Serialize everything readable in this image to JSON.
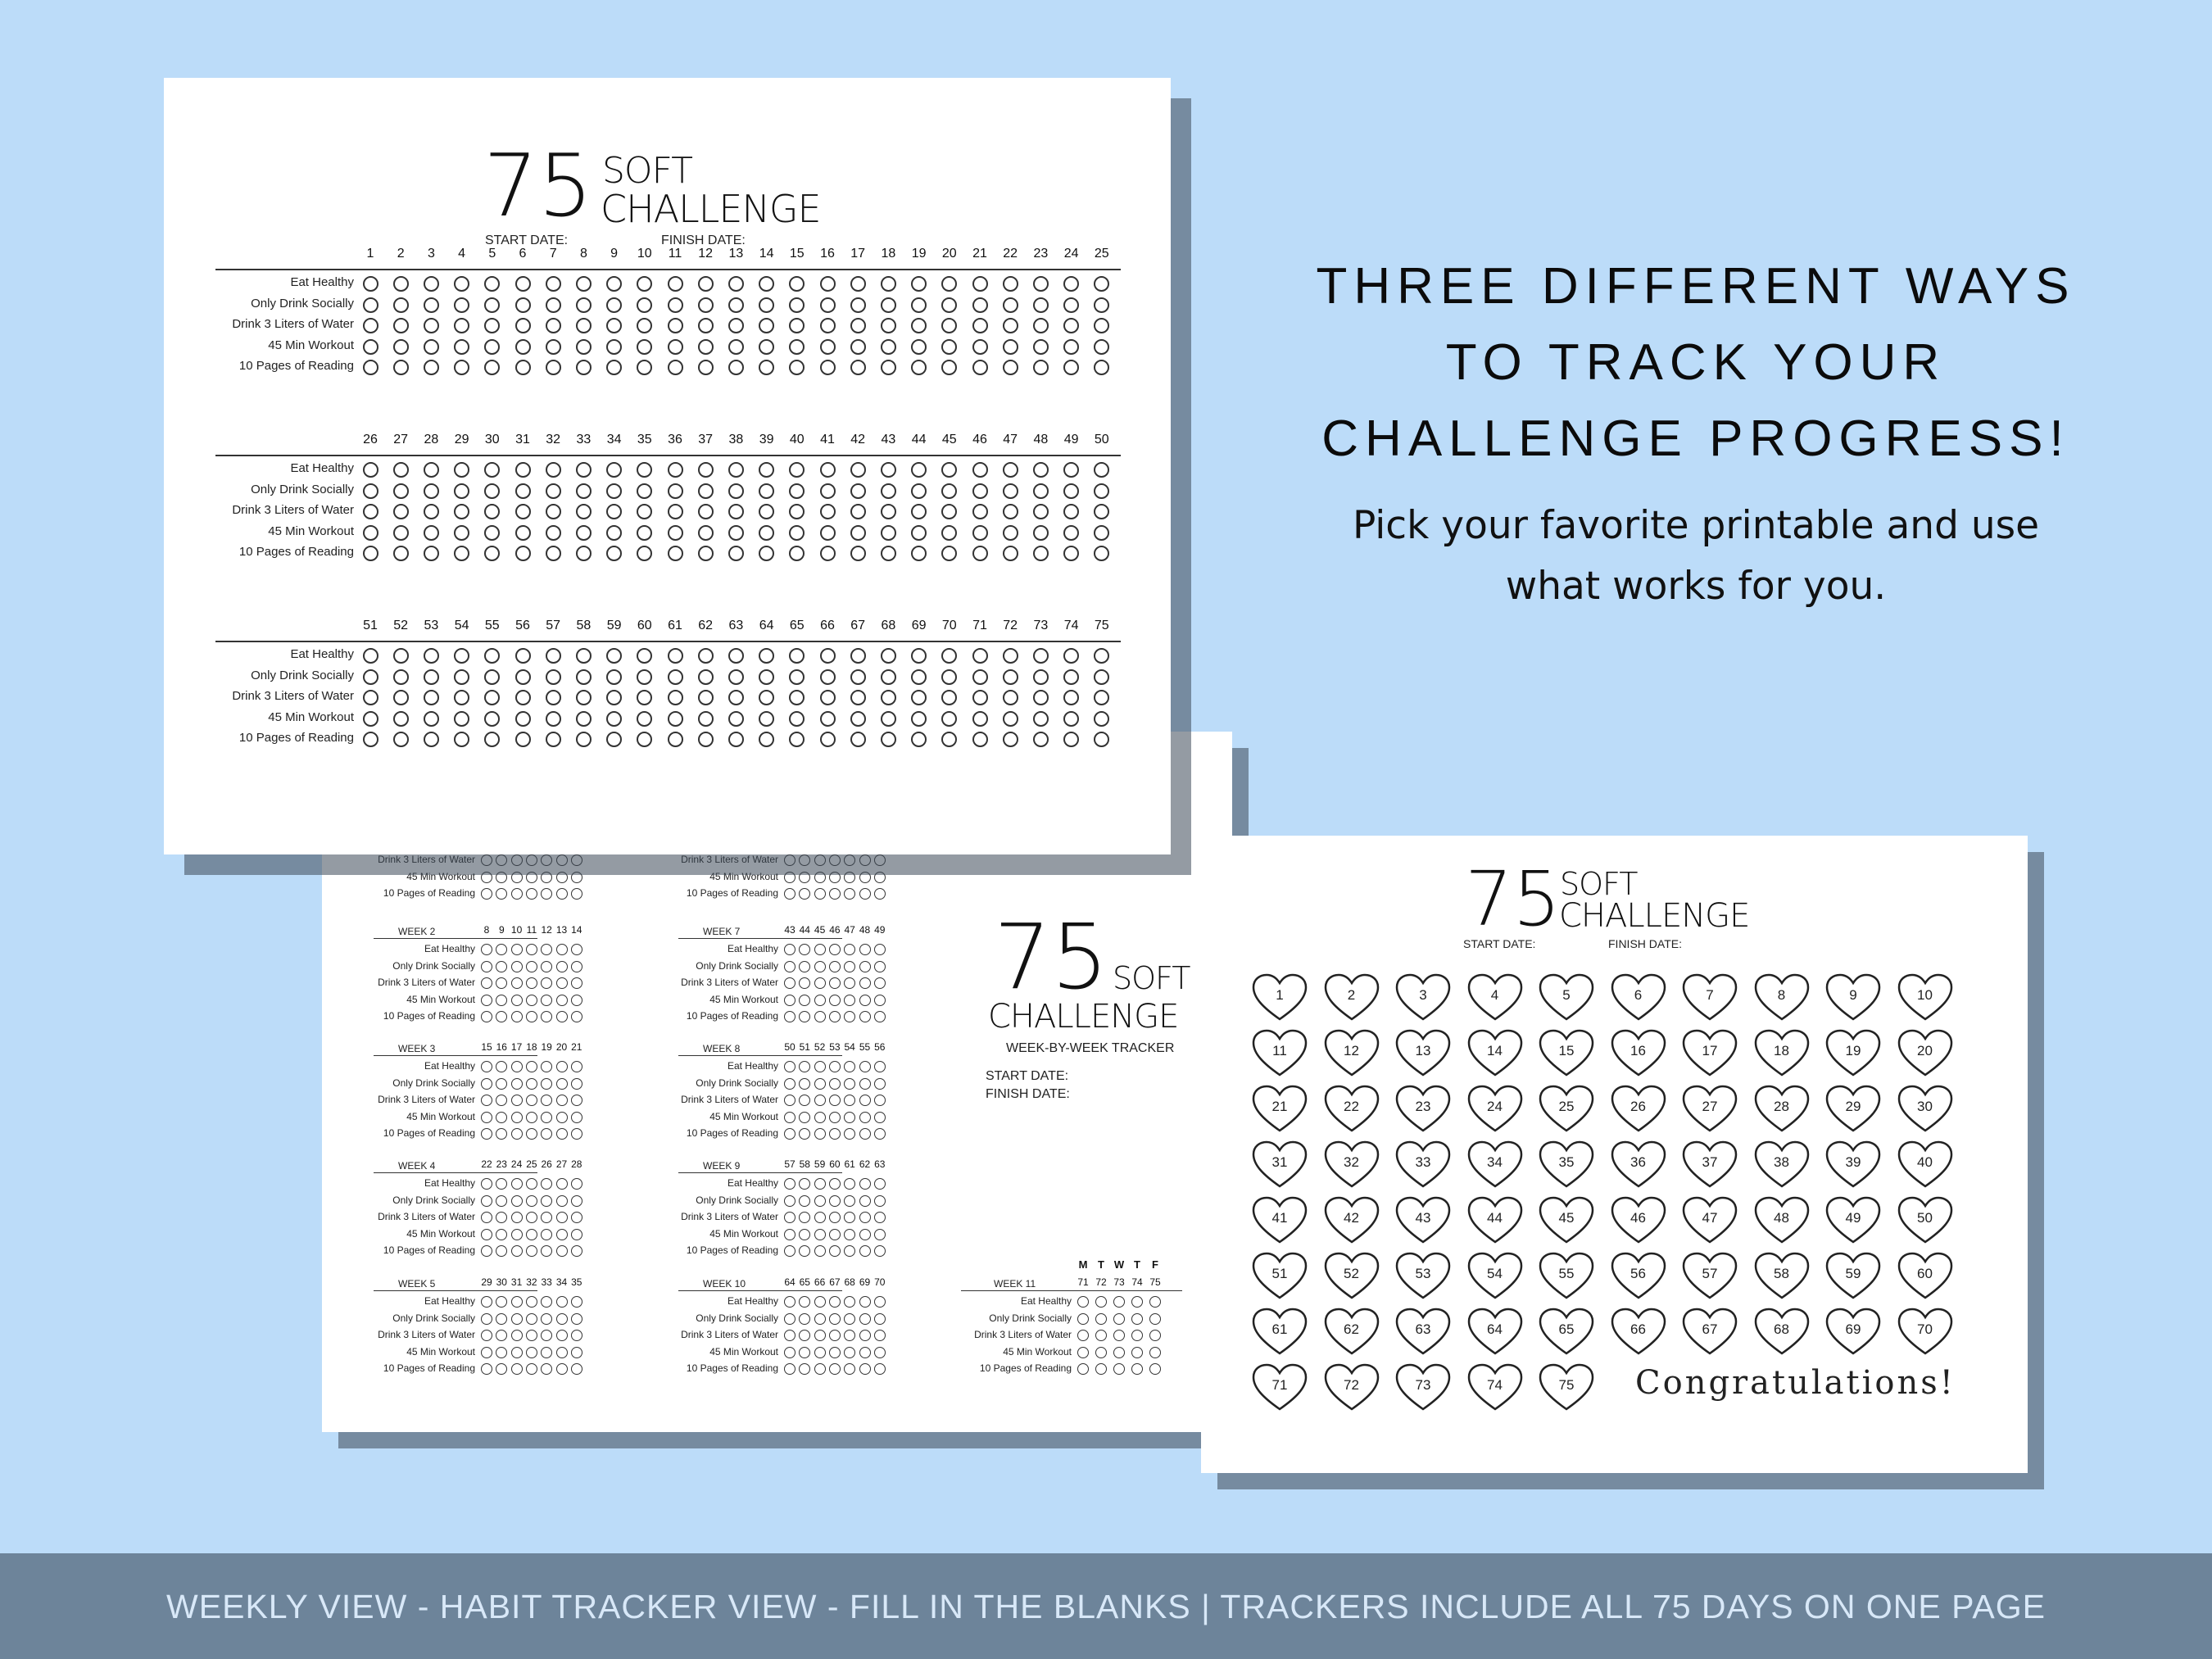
{
  "headline": [
    "THREE DIFFERENT WAYS",
    "TO TRACK YOUR",
    "CHALLENGE PROGRESS!"
  ],
  "subtext": [
    "Pick your favorite printable and use",
    "what works for you."
  ],
  "footer": "WEEKLY VIEW - HABIT TRACKER VIEW - FILL IN THE BLANKS  |  TRACKERS INCLUDE ALL 75 DAYS ON ONE PAGE",
  "title_number": "75",
  "title_soft": "SOFT",
  "title_challenge": "CHALLENGE",
  "start_date_label": "START DATE:",
  "finish_date_label": "FINISH DATE:",
  "week_tracker_label": "WEEK-BY-WEEK TRACKER",
  "habits": [
    "Eat Healthy",
    "Only Drink Socially",
    "Drink 3 Liters of Water",
    "45 Min Workout",
    "10 Pages of Reading"
  ],
  "habit_tracker_day_blocks": [
    [
      1,
      25
    ],
    [
      26,
      50
    ],
    [
      51,
      75
    ]
  ],
  "weekly_tracker": {
    "weeks_left": [
      {
        "label": "WEEK 2",
        "days": [
          8,
          9,
          10,
          11,
          12,
          13,
          14
        ]
      },
      {
        "label": "WEEK 3",
        "days": [
          15,
          16,
          17,
          18,
          19,
          20,
          21
        ]
      },
      {
        "label": "WEEK 4",
        "days": [
          22,
          23,
          24,
          25,
          26,
          27,
          28
        ]
      },
      {
        "label": "WEEK 5",
        "days": [
          29,
          30,
          31,
          32,
          33,
          34,
          35
        ]
      }
    ],
    "weeks_mid": [
      {
        "label": "WEEK 7",
        "days": [
          43,
          44,
          45,
          46,
          47,
          48,
          49
        ]
      },
      {
        "label": "WEEK 8",
        "days": [
          50,
          51,
          52,
          53,
          54,
          55,
          56
        ]
      },
      {
        "label": "WEEK 9",
        "days": [
          57,
          58,
          59,
          60,
          61,
          62,
          63
        ]
      },
      {
        "label": "WEEK 10",
        "days": [
          64,
          65,
          66,
          67,
          68,
          69,
          70
        ]
      }
    ],
    "week11": {
      "label": "WEEK 11",
      "days": [
        71,
        72,
        73,
        74,
        75
      ],
      "weekday_letters": [
        "M",
        "T",
        "W",
        "T",
        "F"
      ]
    }
  },
  "fill_blanks": {
    "total_days": 75,
    "congrats": "Congratulations!"
  }
}
